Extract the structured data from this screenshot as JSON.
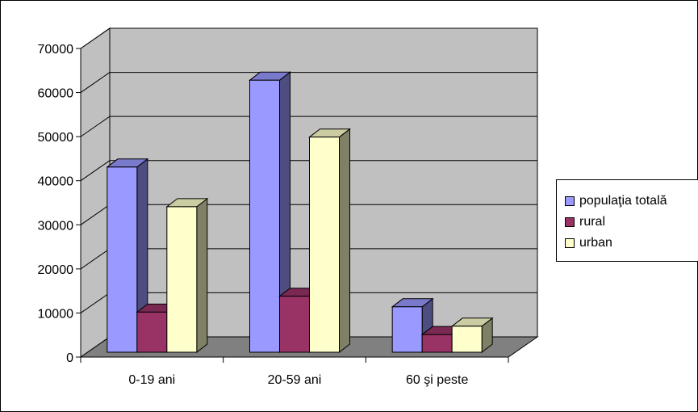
{
  "chart_data": {
    "type": "bar",
    "categories": [
      "0-19 ani",
      "20-59 ani",
      "60 şi peste"
    ],
    "series": [
      {
        "name": "populaţia totală",
        "values": [
          42000,
          61700,
          10300
        ],
        "color": "#9999ff"
      },
      {
        "name": "rural",
        "values": [
          9100,
          12700,
          4000
        ],
        "color": "#993366"
      },
      {
        "name": "urban",
        "values": [
          33000,
          48800,
          5900
        ],
        "color": "#ffffcc"
      }
    ],
    "ylim": [
      0,
      70000
    ],
    "yticks": [
      "0",
      "10000",
      "20000",
      "30000",
      "40000",
      "50000",
      "60000",
      "70000"
    ],
    "grid": true,
    "legend": "right",
    "wall_color": "#c0c0c0",
    "floor_color": "#808080"
  }
}
